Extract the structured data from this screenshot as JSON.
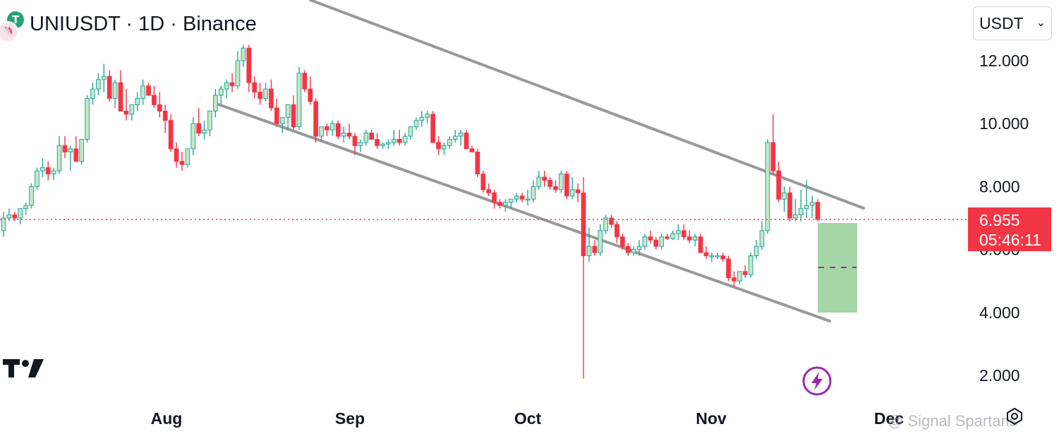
{
  "header": {
    "title": "UNIUSDT · 1D · Binance",
    "symbol_icon": "usdt-uni-pair-icon"
  },
  "currency_selector": {
    "value": "USDT",
    "icon": "chevron-down-icon"
  },
  "price_tag": {
    "price": "6.955",
    "countdown": "05:46:11",
    "color": "#f23645"
  },
  "watermark": {
    "text": "@ Signal Spartans"
  },
  "colors": {
    "up": "#26a69a",
    "up_fill": "#c8e6c9",
    "down": "#f23645",
    "line": "#999999",
    "target_box": "#a5d6a7",
    "bolt": "#9c27b0"
  },
  "chart_data": {
    "type": "candlestick",
    "symbol": "UNIUSDT",
    "interval": "1D",
    "exchange": "Binance",
    "y_ticks": [
      "12.000",
      "10.000",
      "8.000",
      "6.000",
      "4.000",
      "2.000"
    ],
    "x_ticks": [
      "Aug",
      "Sep",
      "Oct",
      "Nov",
      "Dec"
    ],
    "ylim": [
      1.5,
      13.9
    ],
    "current_price": 6.955,
    "candles_ohlc": [
      [
        6.6,
        7.2,
        6.4,
        7.0
      ],
      [
        7.0,
        7.3,
        6.9,
        7.1
      ],
      [
        7.1,
        7.2,
        6.9,
        7.0
      ],
      [
        7.0,
        7.1,
        6.8,
        7.3
      ],
      [
        7.3,
        7.5,
        7.1,
        7.4
      ],
      [
        7.4,
        8.1,
        7.3,
        8.0
      ],
      [
        8.0,
        8.6,
        7.9,
        8.5
      ],
      [
        8.5,
        8.9,
        8.3,
        8.6
      ],
      [
        8.6,
        8.8,
        8.2,
        8.4
      ],
      [
        8.4,
        8.6,
        8.2,
        8.5
      ],
      [
        8.5,
        9.6,
        8.4,
        9.3
      ],
      [
        9.3,
        9.6,
        8.9,
        9.1
      ],
      [
        9.1,
        9.3,
        8.5,
        9.2
      ],
      [
        9.2,
        9.6,
        8.8,
        8.8
      ],
      [
        8.8,
        9.5,
        8.7,
        9.5
      ],
      [
        9.5,
        10.9,
        9.4,
        10.8
      ],
      [
        10.8,
        11.3,
        10.6,
        11.1
      ],
      [
        11.1,
        11.6,
        10.9,
        11.4
      ],
      [
        11.4,
        11.9,
        11.0,
        11.5
      ],
      [
        11.5,
        11.7,
        10.7,
        10.8
      ],
      [
        10.8,
        11.4,
        10.5,
        11.3
      ],
      [
        11.3,
        11.7,
        11.0,
        10.4
      ],
      [
        10.4,
        11.1,
        10.1,
        10.3
      ],
      [
        10.3,
        10.6,
        10.1,
        10.6
      ],
      [
        10.6,
        11.0,
        10.4,
        10.8
      ],
      [
        10.8,
        11.4,
        10.6,
        11.2
      ],
      [
        11.2,
        11.3,
        10.9,
        10.9
      ],
      [
        10.9,
        11.2,
        10.5,
        10.6
      ],
      [
        10.6,
        11.0,
        10.2,
        10.4
      ],
      [
        10.4,
        10.6,
        9.7,
        10.1
      ],
      [
        10.1,
        10.3,
        9.1,
        9.2
      ],
      [
        9.2,
        9.4,
        8.6,
        8.8
      ],
      [
        8.8,
        9.1,
        8.5,
        8.7
      ],
      [
        8.7,
        9.0,
        8.6,
        9.2
      ],
      [
        9.2,
        10.2,
        9.0,
        10.0
      ],
      [
        10.0,
        10.5,
        9.6,
        9.7
      ],
      [
        9.7,
        10.1,
        9.5,
        9.8
      ],
      [
        9.8,
        10.3,
        9.6,
        10.4
      ],
      [
        10.4,
        11.1,
        10.2,
        10.9
      ],
      [
        10.9,
        11.2,
        10.6,
        11.1
      ],
      [
        11.1,
        11.4,
        10.8,
        11.3
      ],
      [
        11.3,
        11.6,
        11.0,
        11.2
      ],
      [
        11.2,
        12.3,
        11.1,
        12.0
      ],
      [
        12.0,
        12.5,
        11.8,
        12.4
      ],
      [
        12.4,
        12.5,
        11.0,
        11.3
      ],
      [
        11.3,
        11.5,
        10.8,
        11.0
      ],
      [
        11.0,
        11.3,
        10.6,
        10.8
      ],
      [
        10.8,
        11.3,
        10.7,
        11.1
      ],
      [
        11.1,
        11.4,
        10.4,
        10.5
      ],
      [
        10.5,
        10.8,
        9.9,
        10.0
      ],
      [
        10.0,
        10.2,
        9.7,
        10.2
      ],
      [
        10.2,
        10.6,
        9.8,
        10.6
      ],
      [
        10.6,
        10.9,
        9.8,
        9.9
      ],
      [
        9.9,
        11.8,
        9.8,
        11.6
      ],
      [
        11.6,
        11.7,
        11.0,
        11.1
      ],
      [
        11.1,
        11.5,
        10.6,
        10.7
      ],
      [
        10.7,
        10.8,
        9.4,
        9.6
      ],
      [
        9.6,
        9.8,
        9.4,
        9.9
      ],
      [
        9.9,
        10.0,
        9.6,
        9.8
      ],
      [
        9.8,
        10.1,
        9.6,
        10.0
      ],
      [
        10.0,
        10.1,
        9.5,
        9.6
      ],
      [
        9.6,
        9.9,
        9.4,
        9.7
      ],
      [
        9.7,
        10.0,
        9.5,
        9.6
      ],
      [
        9.6,
        9.7,
        9.0,
        9.3
      ],
      [
        9.3,
        9.5,
        9.1,
        9.4
      ],
      [
        9.4,
        9.8,
        9.3,
        9.7
      ],
      [
        9.7,
        9.8,
        9.5,
        9.5
      ],
      [
        9.5,
        9.7,
        9.2,
        9.3
      ],
      [
        9.3,
        9.4,
        9.2,
        9.35
      ],
      [
        9.35,
        9.5,
        9.2,
        9.4
      ],
      [
        9.4,
        9.8,
        9.3,
        9.5
      ],
      [
        9.5,
        9.8,
        9.3,
        9.4
      ],
      [
        9.4,
        9.7,
        9.3,
        9.6
      ],
      [
        9.6,
        9.9,
        9.5,
        9.9
      ],
      [
        9.9,
        10.2,
        9.8,
        10.1
      ],
      [
        10.1,
        10.4,
        9.9,
        10.2
      ],
      [
        10.2,
        10.4,
        10.0,
        10.3
      ],
      [
        10.3,
        10.4,
        9.6,
        9.4
      ],
      [
        9.4,
        9.6,
        9.0,
        9.2
      ],
      [
        9.2,
        9.4,
        9.0,
        9.3
      ],
      [
        9.3,
        9.6,
        9.2,
        9.5
      ],
      [
        9.5,
        9.8,
        9.4,
        9.6
      ],
      [
        9.6,
        9.8,
        9.3,
        9.7
      ],
      [
        9.7,
        9.8,
        9.3,
        9.2
      ],
      [
        9.2,
        9.3,
        9.1,
        9.1
      ],
      [
        9.1,
        9.2,
        8.3,
        8.4
      ],
      [
        8.4,
        8.5,
        7.8,
        7.9
      ],
      [
        7.9,
        8.1,
        7.7,
        7.8
      ],
      [
        7.8,
        7.9,
        7.3,
        7.5
      ],
      [
        7.5,
        7.6,
        7.3,
        7.4
      ],
      [
        7.4,
        7.6,
        7.2,
        7.5
      ],
      [
        7.5,
        7.6,
        7.3,
        7.6
      ],
      [
        7.6,
        7.8,
        7.5,
        7.7
      ],
      [
        7.7,
        7.8,
        7.5,
        7.6
      ],
      [
        7.6,
        7.9,
        7.4,
        7.6
      ],
      [
        7.6,
        8.2,
        7.5,
        8.0
      ],
      [
        8.0,
        8.5,
        7.9,
        8.3
      ],
      [
        8.3,
        8.5,
        8.0,
        8.2
      ],
      [
        8.2,
        8.3,
        7.9,
        8.0
      ],
      [
        8.0,
        8.2,
        7.8,
        7.9
      ],
      [
        7.9,
        8.5,
        7.8,
        8.4
      ],
      [
        8.4,
        8.5,
        7.6,
        7.7
      ],
      [
        7.7,
        8.3,
        7.6,
        7.9
      ],
      [
        7.9,
        8.1,
        7.5,
        7.8
      ],
      [
        7.8,
        8.3,
        1.9,
        5.8
      ],
      [
        5.8,
        6.7,
        5.6,
        6.1
      ],
      [
        6.1,
        6.3,
        5.8,
        5.9
      ],
      [
        5.9,
        6.8,
        5.8,
        6.6
      ],
      [
        6.6,
        7.1,
        6.5,
        7.0
      ],
      [
        7.0,
        7.1,
        6.7,
        6.8
      ],
      [
        6.8,
        6.9,
        6.2,
        6.4
      ],
      [
        6.4,
        6.5,
        6.0,
        6.1
      ],
      [
        6.1,
        6.2,
        5.8,
        5.9
      ],
      [
        5.9,
        6.1,
        5.8,
        6.0
      ],
      [
        6.0,
        6.3,
        5.8,
        6.1
      ],
      [
        6.1,
        6.5,
        6.0,
        6.4
      ],
      [
        6.4,
        6.6,
        6.2,
        6.3
      ],
      [
        6.3,
        6.4,
        6.0,
        6.1
      ],
      [
        6.1,
        6.5,
        6.0,
        6.4
      ],
      [
        6.4,
        6.5,
        6.3,
        6.35
      ],
      [
        6.35,
        6.6,
        6.3,
        6.5
      ],
      [
        6.5,
        6.8,
        6.3,
        6.6
      ],
      [
        6.6,
        6.8,
        6.3,
        6.4
      ],
      [
        6.4,
        6.6,
        6.2,
        6.3
      ],
      [
        6.3,
        6.5,
        6.1,
        6.4
      ],
      [
        6.4,
        6.5,
        5.9,
        5.9
      ],
      [
        5.9,
        6.1,
        5.7,
        5.8
      ],
      [
        5.8,
        5.9,
        5.6,
        5.8
      ],
      [
        5.8,
        5.9,
        5.7,
        5.8
      ],
      [
        5.8,
        5.9,
        5.6,
        5.7
      ],
      [
        5.7,
        5.8,
        5.0,
        5.1
      ],
      [
        5.1,
        5.3,
        4.8,
        5.0
      ],
      [
        5.0,
        5.1,
        4.9,
        5.3
      ],
      [
        5.3,
        5.5,
        5.1,
        5.2
      ],
      [
        5.2,
        5.9,
        5.1,
        5.8
      ],
      [
        5.8,
        6.3,
        5.7,
        6.1
      ],
      [
        6.1,
        6.9,
        6.0,
        6.6
      ],
      [
        6.6,
        9.5,
        6.5,
        9.4
      ],
      [
        9.4,
        10.3,
        8.4,
        8.5
      ],
      [
        8.5,
        8.8,
        7.5,
        7.6
      ],
      [
        7.6,
        8.0,
        7.2,
        7.8
      ],
      [
        7.8,
        8.0,
        6.9,
        7.0
      ],
      [
        7.0,
        7.6,
        6.9,
        7.1
      ],
      [
        7.1,
        7.9,
        6.9,
        7.3
      ],
      [
        7.3,
        8.2,
        7.0,
        7.4
      ],
      [
        7.4,
        7.7,
        7.0,
        7.5
      ],
      [
        7.5,
        7.6,
        6.9,
        6.955
      ]
    ]
  }
}
